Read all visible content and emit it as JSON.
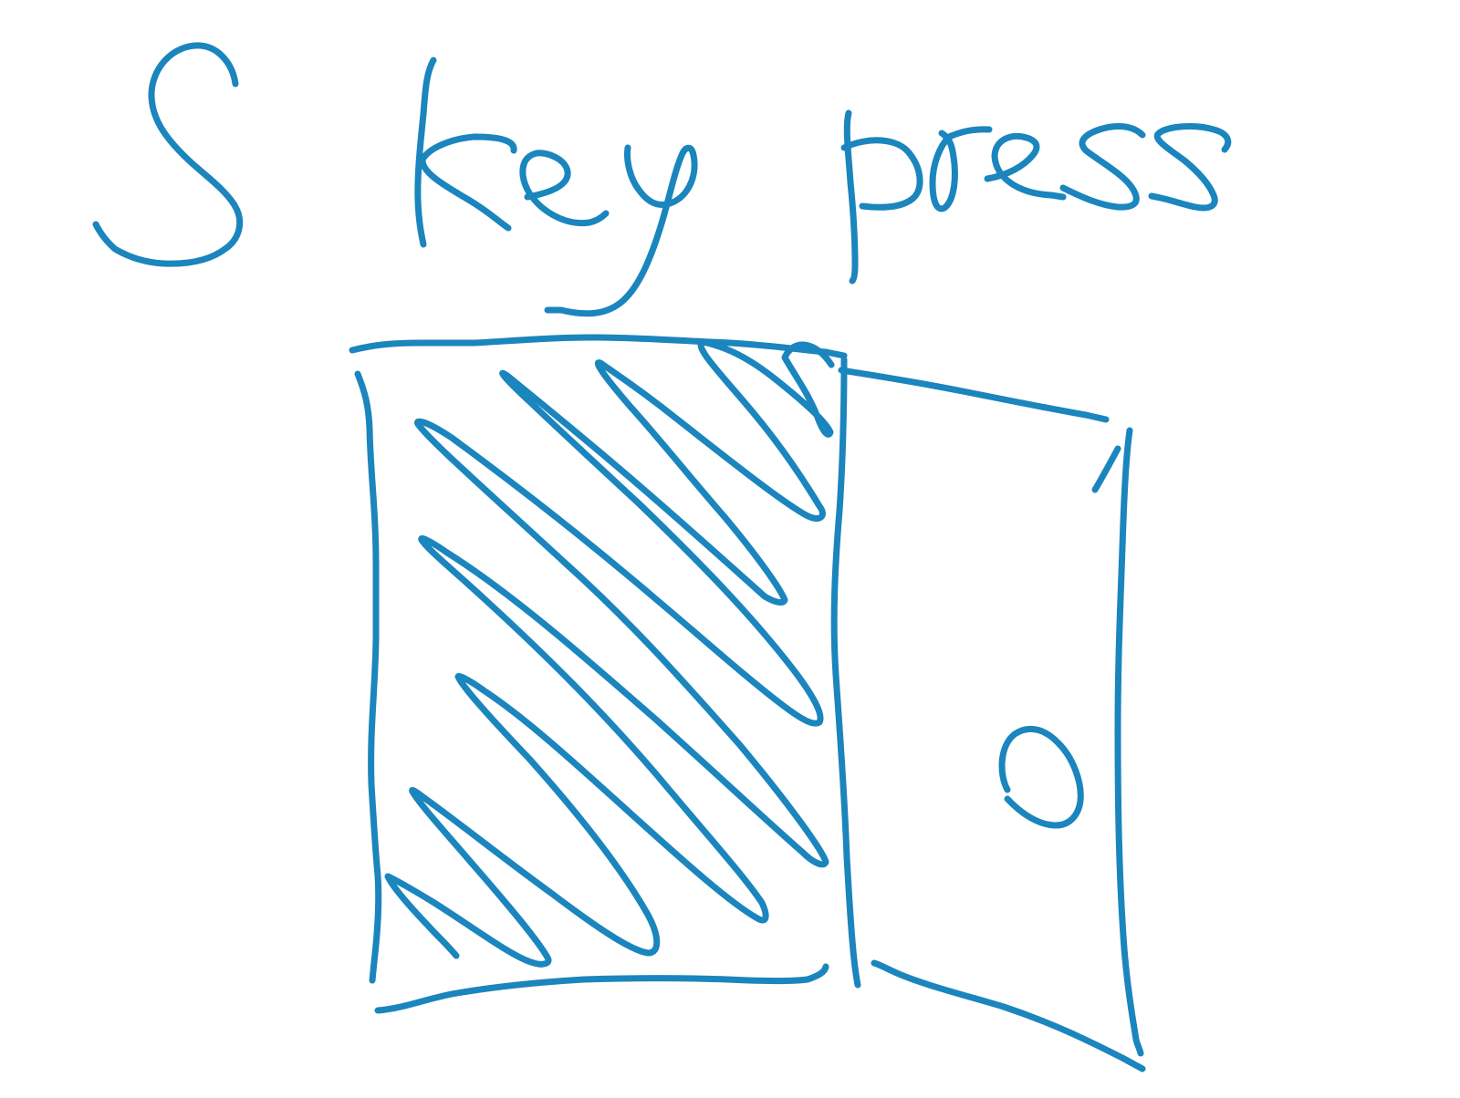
{
  "sketch": {
    "caption": "S key press",
    "ink_color": "#1b85bd",
    "background_color": "#ffffff"
  }
}
